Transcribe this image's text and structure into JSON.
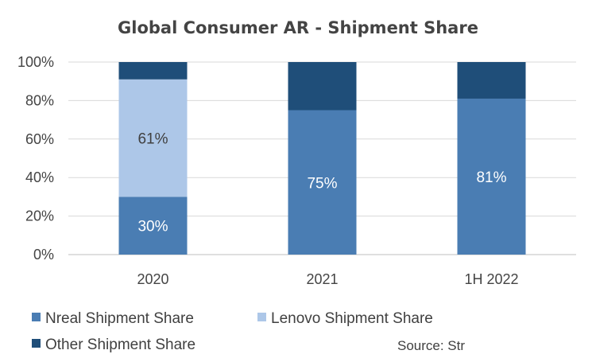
{
  "chart_data": {
    "type": "bar",
    "stacked": true,
    "title": "Global Consumer AR - Shipment Share",
    "xlabel": "",
    "ylabel": "",
    "categories": [
      "2020",
      "2021",
      "1H 2022"
    ],
    "ylim": [
      0,
      100
    ],
    "yticks": [
      "0%",
      "20%",
      "40%",
      "60%",
      "80%",
      "100%"
    ],
    "series": [
      {
        "name": "Nreal Shipment Share",
        "color": "#4a7db3",
        "values": [
          30,
          75,
          81
        ],
        "labels": [
          "30%",
          "75%",
          "81%"
        ],
        "label_color": "#ffffff"
      },
      {
        "name": "Lenovo Shipment Share",
        "color": "#adc7e8",
        "values": [
          61,
          0,
          0
        ],
        "labels": [
          "61%",
          "",
          ""
        ],
        "label_color": "#404040"
      },
      {
        "name": "Other Shipment Share",
        "color": "#1f4e79",
        "values": [
          9,
          25,
          19
        ],
        "labels": [
          "",
          "",
          ""
        ],
        "label_color": "#ffffff"
      }
    ],
    "legend_position": "bottom",
    "grid": true
  },
  "source_text": "Source: Str"
}
